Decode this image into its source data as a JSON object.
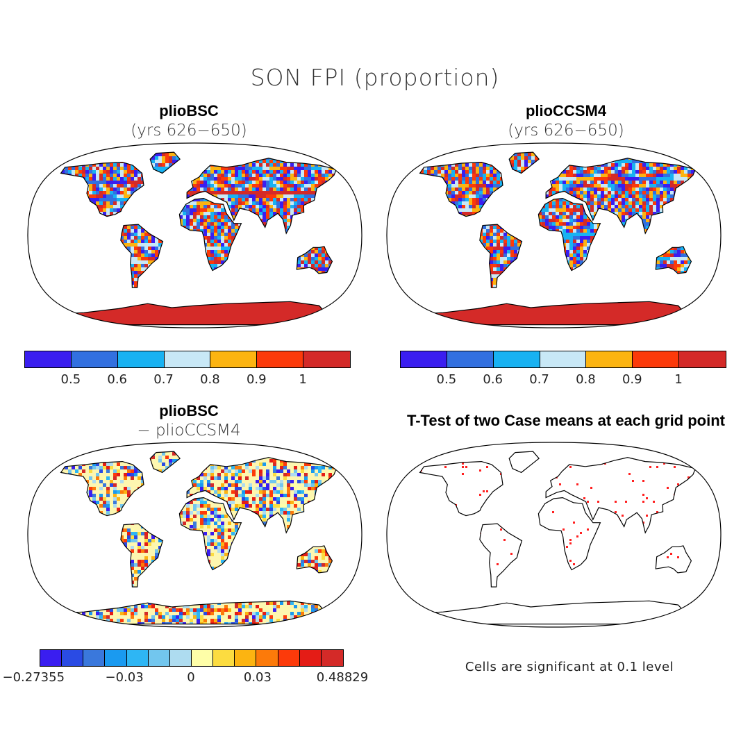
{
  "title": "SON FPI (proportion)",
  "panels": {
    "tl": {
      "title": "plioBSC",
      "subtitle": "(yrs 626−650)"
    },
    "tr": {
      "title": "plioCCSM4",
      "subtitle": "(yrs 626−650)"
    },
    "bl": {
      "title": "plioBSC",
      "subtitle": "− plioCCSM4"
    },
    "br": {
      "title": "T-Test of two Case means at each grid point",
      "note": "Cells are significant at 0.1 level"
    }
  },
  "colorbar_main": {
    "colors": [
      "#3a1ef0",
      "#3270e0",
      "#18b2f2",
      "#c8e8f6",
      "#fcb411",
      "#fc3a0a",
      "#d42a28"
    ],
    "ticks": [
      "0.5",
      "0.6",
      "0.7",
      "0.8",
      "0.9",
      "1"
    ]
  },
  "colorbar_diff": {
    "colors": [
      "#3a1ef0",
      "#2a4be4",
      "#3a78dc",
      "#1a9af0",
      "#2eb6f4",
      "#72c6ee",
      "#aedcf0",
      "#fefea8",
      "#fcdc40",
      "#fcb411",
      "#fc7a0a",
      "#fc3a0a",
      "#e41c16",
      "#d42a28"
    ],
    "ticks": [
      "−0.27355",
      "−0.03",
      "0",
      "0.03",
      "0.48829"
    ]
  },
  "icons": {
    "map": "robinson-world-map"
  }
}
